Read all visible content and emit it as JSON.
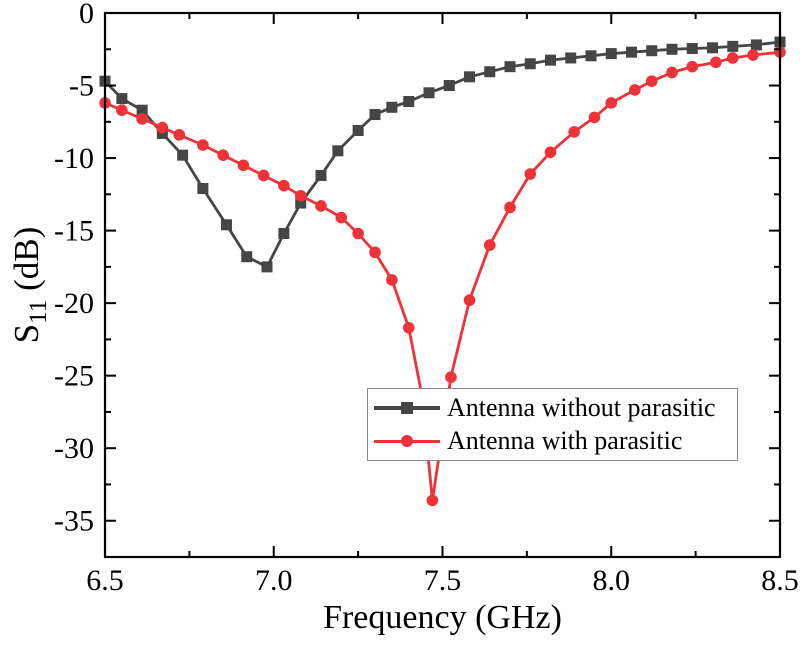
{
  "chart_data": {
    "type": "line",
    "title": "",
    "xlabel": "Frequency (GHz)",
    "ylabel": "S11 (dB)",
    "ylabel_parts": {
      "base": "S",
      "sub": "11",
      "unit": " (dB)"
    },
    "xlim": [
      6.5,
      8.5
    ],
    "ylim": [
      -37.5,
      0
    ],
    "x_major_ticks": [
      6.5,
      7.0,
      7.5,
      8.0,
      8.5
    ],
    "x_major_labels": [
      "6.5",
      "7.0",
      "7.5",
      "8.0",
      "8.5"
    ],
    "x_minor_ticks": [
      6.75,
      7.25,
      7.75,
      8.25
    ],
    "y_major_ticks": [
      0,
      -5,
      -10,
      -15,
      -20,
      -25,
      -30,
      -35
    ],
    "y_major_labels": [
      "0",
      "-5",
      "-10",
      "-15",
      "-20",
      "-25",
      "-30",
      "-35"
    ],
    "y_minor_ticks": [
      -2.5,
      -7.5,
      -12.5,
      -17.5,
      -22.5,
      -27.5,
      -32.5
    ],
    "grid": false,
    "legend_position": "inside bottom-center",
    "axis_color": "#000000",
    "series": [
      {
        "name": "Antenna without parasitic",
        "color": "#454545",
        "marker": "square",
        "x": [
          6.5,
          6.55,
          6.61,
          6.67,
          6.73,
          6.79,
          6.86,
          6.92,
          6.98,
          7.03,
          7.08,
          7.14,
          7.19,
          7.25,
          7.3,
          7.35,
          7.4,
          7.46,
          7.52,
          7.58,
          7.64,
          7.7,
          7.76,
          7.82,
          7.88,
          7.94,
          8.0,
          8.06,
          8.12,
          8.18,
          8.24,
          8.3,
          8.36,
          8.43,
          8.5
        ],
        "y": [
          -4.7,
          -5.9,
          -6.7,
          -8.3,
          -9.8,
          -12.1,
          -14.6,
          -16.8,
          -17.5,
          -15.2,
          -13.1,
          -11.2,
          -9.5,
          -8.1,
          -7.0,
          -6.5,
          -6.1,
          -5.5,
          -5.0,
          -4.4,
          -4.05,
          -3.7,
          -3.5,
          -3.25,
          -3.1,
          -2.95,
          -2.8,
          -2.7,
          -2.6,
          -2.5,
          -2.45,
          -2.4,
          -2.3,
          -2.2,
          -2.0
        ]
      },
      {
        "name": "Antenna with parasitic",
        "color": "#ED3338",
        "marker": "circle",
        "x": [
          6.5,
          6.55,
          6.61,
          6.67,
          6.72,
          6.79,
          6.85,
          6.91,
          6.97,
          7.03,
          7.08,
          7.14,
          7.2,
          7.25,
          7.3,
          7.35,
          7.4,
          7.44,
          7.47,
          7.525,
          7.58,
          7.64,
          7.7,
          7.76,
          7.82,
          7.89,
          7.95,
          8.0,
          8.07,
          8.12,
          8.18,
          8.24,
          8.31,
          8.36,
          8.42,
          8.5
        ],
        "y": [
          -6.2,
          -6.7,
          -7.3,
          -7.9,
          -8.4,
          -9.1,
          -9.8,
          -10.5,
          -11.2,
          -11.9,
          -12.6,
          -13.3,
          -14.1,
          -15.2,
          -16.5,
          -18.4,
          -21.7,
          -26.5,
          -33.6,
          -25.1,
          -19.8,
          -16.0,
          -13.4,
          -11.1,
          -9.6,
          -8.2,
          -7.2,
          -6.2,
          -5.3,
          -4.7,
          -4.1,
          -3.7,
          -3.4,
          -3.1,
          -2.9,
          -2.7
        ]
      }
    ]
  }
}
